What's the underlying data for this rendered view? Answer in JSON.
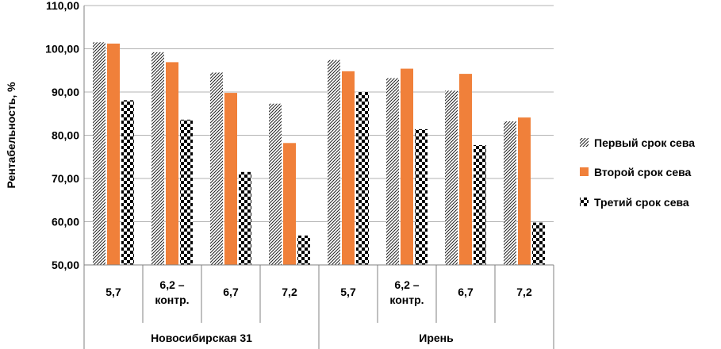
{
  "chart_data": {
    "type": "bar",
    "ylabel": "Рентабельность, %",
    "ylim": [
      50,
      110
    ],
    "ytick_step": 10,
    "ytick_labels": [
      "50,00",
      "60,00",
      "70,00",
      "80,00",
      "90,00",
      "100,00",
      "110,00"
    ],
    "grid": true,
    "groups": [
      {
        "name": "Новосибирская 31",
        "categories": [
          "5,7",
          "6,2 –\nконтр.",
          "6,7",
          "7,2"
        ]
      },
      {
        "name": "Ирень",
        "categories": [
          "5,7",
          "6,2 –\nконтр.",
          "6,7",
          "7,2"
        ]
      }
    ],
    "series": [
      {
        "name": "Первый срок сева",
        "pattern": "diagonal-hatch",
        "values": [
          101.5,
          99.2,
          94.5,
          87.3,
          97.4,
          93.2,
          90.3,
          83.2
        ]
      },
      {
        "name": "Второй срок сева",
        "color": "#F0803A",
        "pattern": "solid",
        "values": [
          101.2,
          96.9,
          89.8,
          78.2,
          94.8,
          95.4,
          94.2,
          84.1
        ]
      },
      {
        "name": "Третий срок сева",
        "pattern": "checker",
        "values": [
          88.1,
          83.6,
          71.5,
          56.8,
          90.0,
          81.4,
          77.7,
          59.8
        ]
      }
    ],
    "legend_position": "right"
  }
}
